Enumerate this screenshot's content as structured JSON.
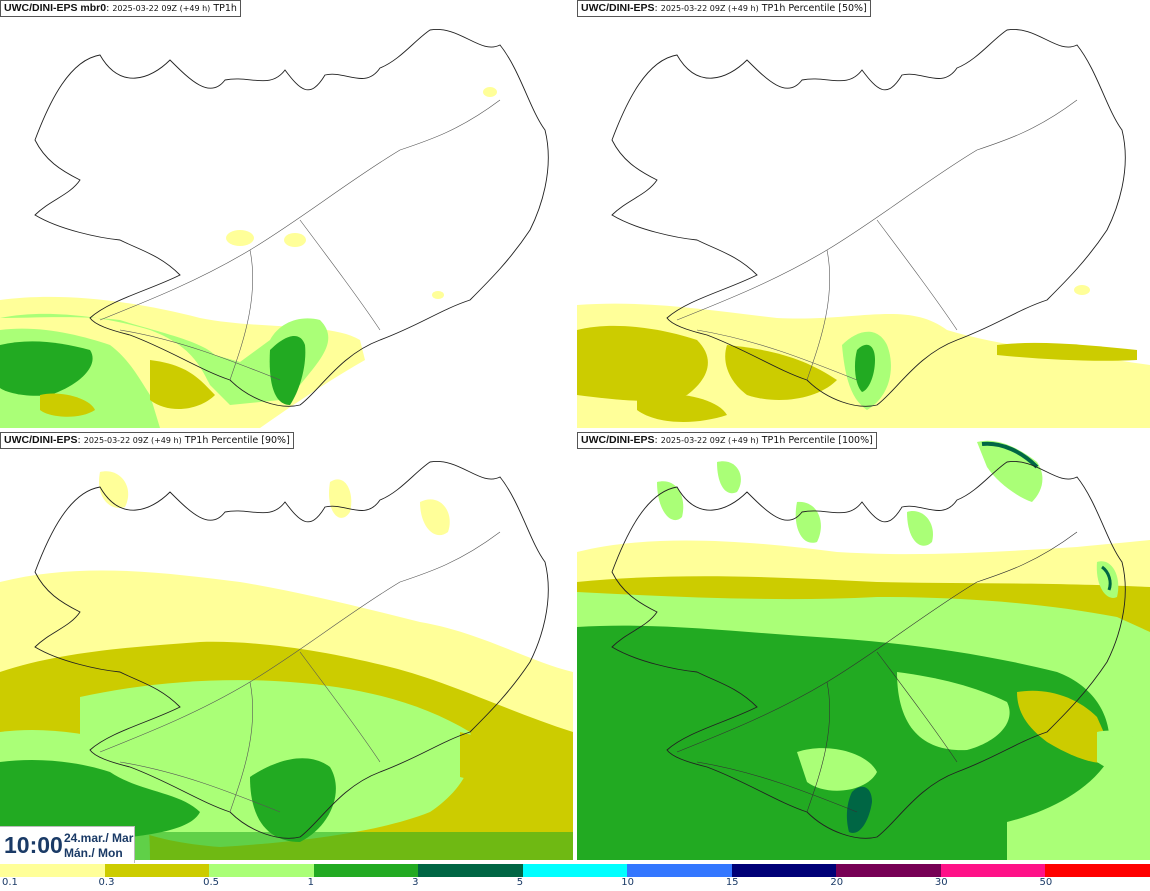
{
  "panels": [
    {
      "title_bold": "UWC/DINI-EPS mbr0",
      "title_run": "2025-03-22 09Z (+49 h)",
      "title_field": "TP1h"
    },
    {
      "title_bold": "UWC/DINI-EPS",
      "title_run": "2025-03-22 09Z (+49 h)",
      "title_field": "TP1h Percentile [50%]"
    },
    {
      "title_bold": "UWC/DINI-EPS",
      "title_run": "2025-03-22 09Z (+49 h)",
      "title_field": "TP1h Percentile [90%]"
    },
    {
      "title_bold": "UWC/DINI-EPS",
      "title_run": "2025-03-22 09Z (+49 h)",
      "title_field": "TP1h Percentile [100%]"
    }
  ],
  "valid_time": {
    "time": "10:00",
    "date_line1": "24.mar./ Mar",
    "date_line2": "Mán./ Mon"
  },
  "legend": {
    "colors": [
      "#ffff99",
      "#cccc00",
      "#aaff77",
      "#22aa22",
      "#006644",
      "#00ffff",
      "#3377ff",
      "#000077",
      "#770055",
      "#ff1188",
      "#ff0000"
    ],
    "labels": [
      "0.1",
      "0.3",
      "0.5",
      "1",
      "3",
      "5",
      "10",
      "15",
      "20",
      "30",
      "50"
    ]
  },
  "colors": {
    "land_outline": "#222222",
    "background": "#ffffff",
    "time_text": "#1a3a66"
  }
}
